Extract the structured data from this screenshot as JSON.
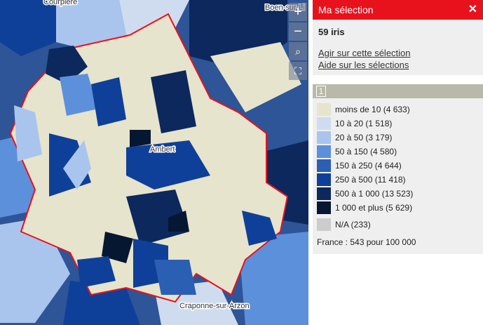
{
  "map": {
    "places": [
      "Courpière",
      "Boen-sur-Li",
      "Ambert",
      "Craponne-sur-Arzon"
    ]
  },
  "panel": {
    "title": "Ma sélection",
    "count": "59 iris",
    "links": [
      "Agir sur cette sélection",
      "Aide sur les sélections"
    ],
    "tab": "1",
    "legend": [
      {
        "label": "moins de 10 (4 633)",
        "color": "#e6e4cc"
      },
      {
        "label": "10 à 20 (1 518)",
        "color": "#cfdcf0"
      },
      {
        "label": "20 à 50 (3 179)",
        "color": "#a9c5ee"
      },
      {
        "label": "50 à 150 (4 580)",
        "color": "#5d90da"
      },
      {
        "label": "150 à 250 (4 644)",
        "color": "#2b5fb3"
      },
      {
        "label": "250 à 500 (11 418)",
        "color": "#0f4099"
      },
      {
        "label": "500 à 1 000 (13 523)",
        "color": "#0c285d"
      },
      {
        "label": "1 000 et plus (5 629)",
        "color": "#051731"
      }
    ],
    "na": {
      "label": "N/A (233)",
      "color": "#cccccc"
    },
    "note": "France : 543 pour 100 000"
  }
}
